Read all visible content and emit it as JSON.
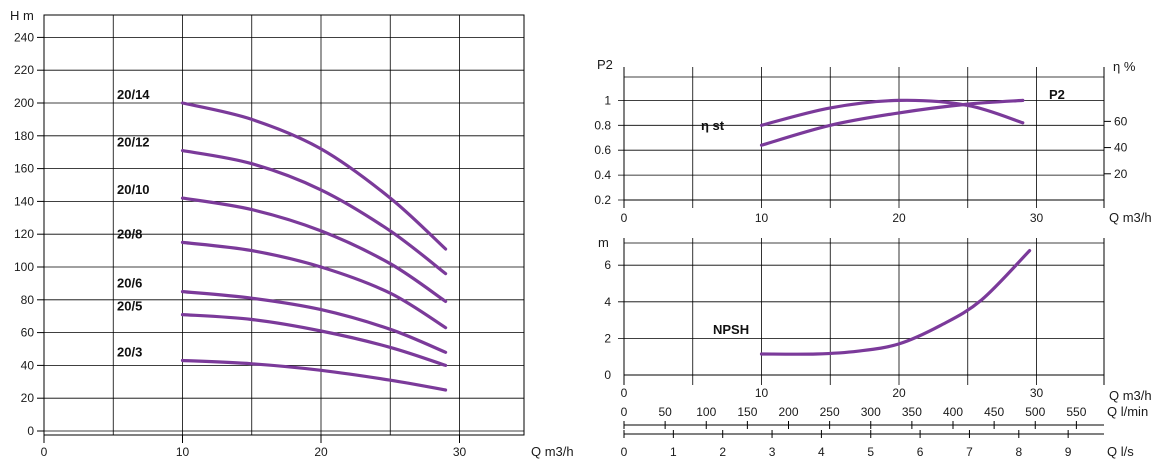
{
  "colors": {
    "curve": "#7b3a9a",
    "grid": "#000000",
    "text": "#1a1a1a"
  },
  "chart_data": [
    {
      "type": "line",
      "title": "",
      "ylabel": "H m",
      "xlabel": "Q m3/h",
      "xlim": [
        0,
        33
      ],
      "ylim": [
        0,
        250
      ],
      "x_ticks": [
        0,
        10,
        20,
        30
      ],
      "y_ticks": [
        0,
        20,
        40,
        60,
        80,
        100,
        120,
        140,
        160,
        180,
        200,
        220,
        240
      ],
      "grid": true,
      "series": [
        {
          "name": "20/14",
          "x": [
            10,
            15,
            20,
            25,
            29
          ],
          "y": [
            200,
            190,
            172,
            142,
            111
          ]
        },
        {
          "name": "20/12",
          "x": [
            10,
            15,
            20,
            25,
            29
          ],
          "y": [
            171,
            163,
            147,
            122,
            96
          ]
        },
        {
          "name": "20/10",
          "x": [
            10,
            15,
            20,
            25,
            29
          ],
          "y": [
            142,
            135,
            122,
            102,
            79
          ]
        },
        {
          "name": "20/8",
          "x": [
            10,
            15,
            20,
            25,
            29
          ],
          "y": [
            115,
            110,
            100,
            84,
            63
          ]
        },
        {
          "name": "20/6",
          "x": [
            10,
            15,
            20,
            25,
            29
          ],
          "y": [
            85,
            81,
            74,
            62,
            48
          ]
        },
        {
          "name": "20/5",
          "x": [
            10,
            15,
            20,
            25,
            29
          ],
          "y": [
            71,
            68,
            61,
            51,
            40
          ]
        },
        {
          "name": "20/3",
          "x": [
            10,
            15,
            20,
            25,
            29
          ],
          "y": [
            43,
            41,
            37,
            31,
            25
          ]
        }
      ]
    },
    {
      "type": "line",
      "title": "",
      "ylabel": "P2",
      "y2label": "η %",
      "xlabel": "Q m3/h",
      "xlim": [
        0,
        35
      ],
      "ylim": [
        0.2,
        1.2
      ],
      "y2lim": [
        0,
        80
      ],
      "x_ticks": [
        0,
        10,
        20,
        30
      ],
      "y_ticks": [
        0.2,
        0.4,
        0.6,
        0.8,
        1.0
      ],
      "y2_ticks": [
        20,
        40,
        60
      ],
      "grid": true,
      "series": [
        {
          "name": "P2",
          "x": [
            10,
            15,
            20,
            25,
            29
          ],
          "y": [
            0.64,
            0.8,
            0.9,
            0.97,
            1.0
          ]
        },
        {
          "name": "η st",
          "x": [
            10,
            15,
            20,
            25,
            29
          ],
          "y": [
            0.8,
            0.94,
            1.0,
            0.96,
            0.82
          ]
        }
      ]
    },
    {
      "type": "line",
      "title": "",
      "ylabel": "m",
      "xlabel": "Q m3/h",
      "xlim": [
        0,
        35
      ],
      "ylim": [
        0,
        7.5
      ],
      "x_ticks": [
        0,
        10,
        20,
        30
      ],
      "y_ticks": [
        0,
        2,
        4,
        6
      ],
      "grid": true,
      "series": [
        {
          "name": "NPSH",
          "x": [
            10,
            14,
            17,
            20,
            23,
            26,
            29.5
          ],
          "y": [
            1.15,
            1.15,
            1.3,
            1.7,
            2.7,
            4.1,
            6.8
          ]
        }
      ]
    }
  ],
  "scales": {
    "lmin": {
      "label": "Q l/min",
      "ticks": [
        0,
        50,
        100,
        150,
        200,
        250,
        300,
        350,
        400,
        450,
        500,
        550
      ]
    },
    "ls": {
      "label": "Q l/s",
      "ticks": [
        0,
        1,
        2,
        3,
        4,
        5,
        6,
        7,
        8,
        9
      ]
    }
  }
}
